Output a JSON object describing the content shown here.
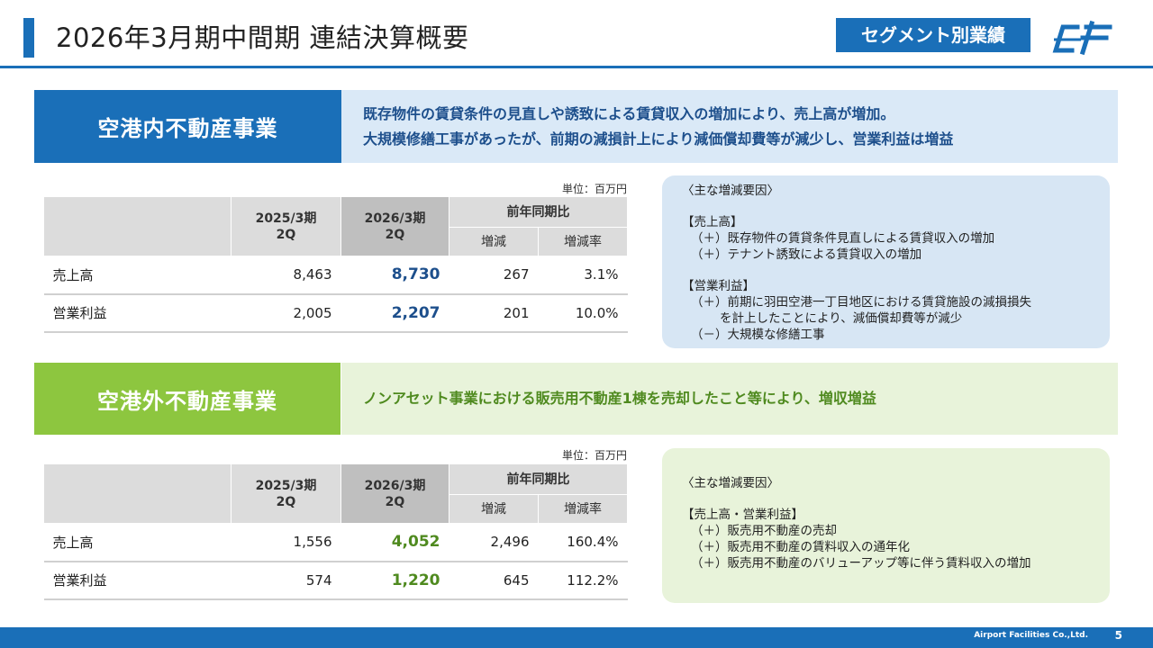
{
  "header": {
    "title": "2026年3月期中間期  連結決算概要",
    "segment_badge": "セグメント別業績"
  },
  "colors": {
    "brand_blue": "#1a6fb8",
    "green": "#8dc63f",
    "blue_text": "#1d4f8c",
    "green_text": "#4f8a1f"
  },
  "section1": {
    "label": "空港内不動産事業",
    "desc_lines": [
      "既存物件の賃貸条件の見直しや誘致による賃貸収入の増加により、売上高が増加。",
      "大規模修繕工事があったが、前期の減損計上により減価償却費等が減少し、営業利益は増益"
    ],
    "unit": "単位：百万円",
    "table": {
      "col_prev": [
        "2025/3期",
        "2Q"
      ],
      "col_cur": [
        "2026/3期",
        "2Q"
      ],
      "col_group": "前年同期比",
      "col_diff": "増減",
      "col_rate": "増減率",
      "rows": [
        {
          "label": "売上高",
          "prev": "8,463",
          "cur": "8,730",
          "diff": "267",
          "rate": "3.1%"
        },
        {
          "label": "営業利益",
          "prev": "2,005",
          "cur": "2,207",
          "diff": "201",
          "rate": "10.0%"
        }
      ]
    },
    "factors": {
      "heading": "〈主な増減要因〉",
      "sales_heading": "【売上高】",
      "sales_items": [
        "（＋）既存物件の賃貸条件見直しによる賃貸収入の増加",
        "（＋）テナント誘致による賃貸収入の増加"
      ],
      "profit_heading": "【営業利益】",
      "profit_item1": "（＋）前期に羽田空港一丁目地区における賃貸施設の減損損失",
      "profit_item1_cont": "を計上したことにより、減価償却費等が減少",
      "profit_item2": "（－）大規模な修繕工事"
    }
  },
  "section2": {
    "label": "空港外不動産事業",
    "desc_lines": [
      "ノンアセット事業における販売用不動産1棟を売却したこと等により、増収増益"
    ],
    "unit": "単位：百万円",
    "table": {
      "col_prev": [
        "2025/3期",
        "2Q"
      ],
      "col_cur": [
        "2026/3期",
        "2Q"
      ],
      "col_group": "前年同期比",
      "col_diff": "増減",
      "col_rate": "増減率",
      "rows": [
        {
          "label": "売上高",
          "prev": "1,556",
          "cur": "4,052",
          "diff": "2,496",
          "rate": "160.4%"
        },
        {
          "label": "営業利益",
          "prev": "574",
          "cur": "1,220",
          "diff": "645",
          "rate": "112.2%"
        }
      ]
    },
    "factors": {
      "heading": "〈主な増減要因〉",
      "combined_heading": "【売上高・営業利益】",
      "items": [
        "（＋）販売用不動産の売却",
        "（＋）販売用不動産の賃料収入の通年化",
        "（＋）販売用不動産のバリューアップ等に伴う賃料収入の増加"
      ]
    }
  },
  "footer": {
    "company": "Airport Facilities Co.,Ltd.",
    "page": "5"
  }
}
